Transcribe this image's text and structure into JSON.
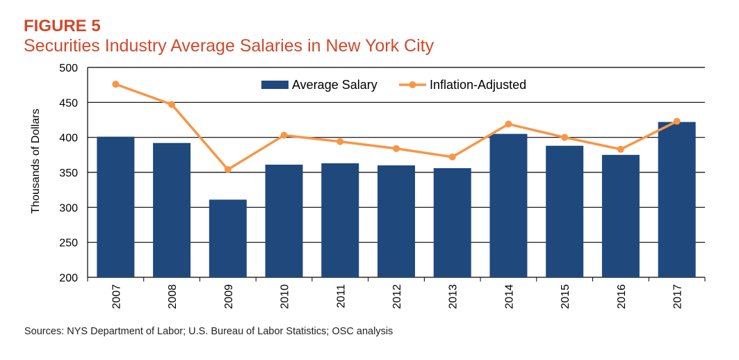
{
  "figure_label": "FIGURE 5",
  "title": "Securities Industry Average Salaries in New York City",
  "source": "Sources: NYS Department of Labor; U.S. Bureau of Labor Statistics; OSC analysis",
  "colors": {
    "title": "#d0492b",
    "bar": "#1f497d",
    "line": "#f79646",
    "grid": "#000000"
  },
  "chart_data": {
    "type": "bar",
    "categories": [
      "2007",
      "2008",
      "2009",
      "2010",
      "2011",
      "2012",
      "2013",
      "2014",
      "2015",
      "2016",
      "2017"
    ],
    "series": [
      {
        "name": "Average Salary",
        "type": "bar",
        "values": [
          401,
          392,
          311,
          361,
          363,
          360,
          356,
          405,
          388,
          375,
          422
        ]
      },
      {
        "name": "Inflation-Adjusted",
        "type": "line",
        "values": [
          476,
          447,
          354,
          403,
          394,
          384,
          372,
          419,
          400,
          383,
          423
        ]
      }
    ],
    "ylabel": "Thousands of Dollars",
    "xlabel": "",
    "ylim": [
      200,
      500
    ],
    "yticks": [
      200,
      250,
      300,
      350,
      400,
      450,
      500
    ],
    "grid": true,
    "legend": "top-center"
  }
}
